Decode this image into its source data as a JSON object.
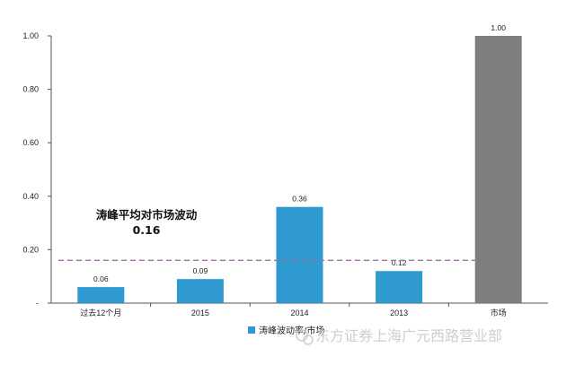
{
  "chart_data": {
    "type": "bar",
    "categories": [
      "过去12个月",
      "2015",
      "2014",
      "2013",
      "市场"
    ],
    "series": [
      {
        "name": "涛峰波动率/市场",
        "values": [
          0.06,
          0.09,
          0.36,
          0.12,
          1.0
        ],
        "color": "#2e9ad0"
      }
    ],
    "bar_colors": [
      "#2e9ad0",
      "#2e9ad0",
      "#2e9ad0",
      "#2e9ad0",
      "#7f7f7f"
    ],
    "value_labels": [
      "0.06",
      "0.09",
      "0.36",
      "0.12",
      "1.00"
    ],
    "y_ticks": [
      0,
      0.2,
      0.4,
      0.6,
      0.8,
      1.0
    ],
    "y_tick_labels": [
      "-",
      "0.20",
      "0.40",
      "0.60",
      "0.80",
      "1.00"
    ],
    "ylim": [
      0,
      1.0
    ],
    "reference_line": {
      "value": 0.16,
      "style": "dashed",
      "color": "#a070a8"
    },
    "annotation": {
      "line1": "涛峰平均对市场波动",
      "line2": "0.16"
    },
    "legend": {
      "label": "涛峰波动率/市场",
      "position": "bottom"
    },
    "grid": false,
    "title": "",
    "xlabel": "",
    "ylabel": ""
  },
  "watermark": {
    "text": "东方证券上海广元西路营业部",
    "icon": "wechat-icon"
  }
}
